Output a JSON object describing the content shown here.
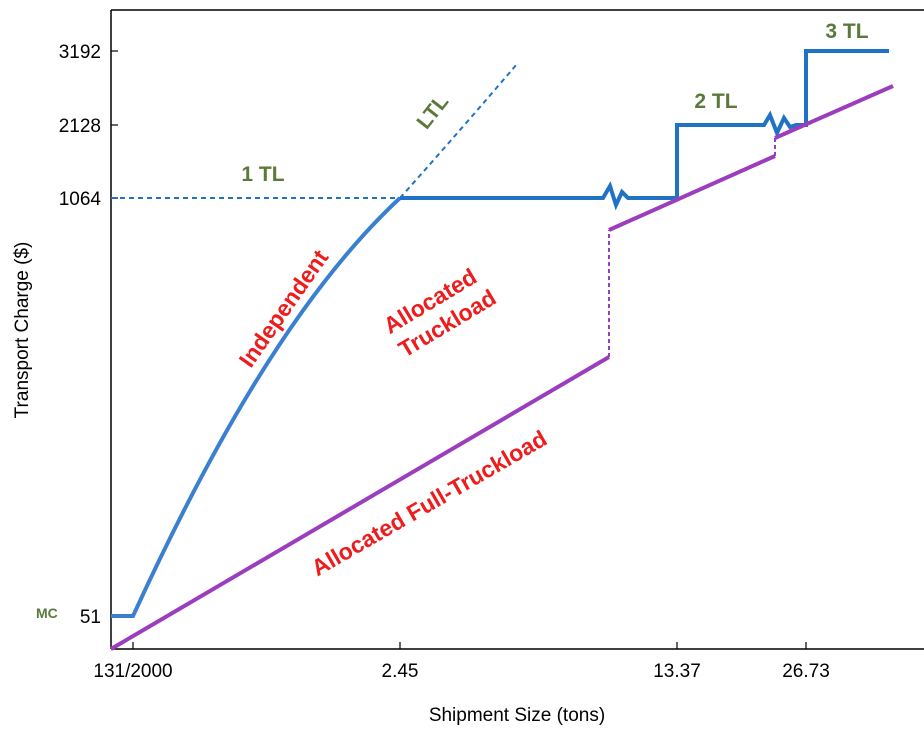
{
  "chart_data": {
    "type": "line",
    "xlabel": "Shipment Size (tons)",
    "ylabel": "Transport Charge ($)",
    "x_ticks": [
      "131/2000",
      "2.45",
      "13.37",
      "26.73"
    ],
    "y_ticks": [
      "51",
      "1064",
      "2128",
      "3192"
    ],
    "y_tick_values": [
      51,
      1064,
      2128,
      3192
    ],
    "mc_label": "MC",
    "colors": {
      "independent": "#3a7fd0",
      "truckload_steps": "#1f72c4",
      "allocated": "#9b3dbd",
      "green_text": "#5b7a3a",
      "red_text": "#ee1c1c"
    },
    "annotations": {
      "ltl": "LTL",
      "one_tl": "1 TL",
      "two_tl": "2 TL",
      "three_tl": "3 TL",
      "independent": "Independent",
      "allocated_truckload_1": "Allocated",
      "allocated_truckload_2": "Truckload",
      "allocated_full": "Allocated Full-Truckload"
    }
  }
}
